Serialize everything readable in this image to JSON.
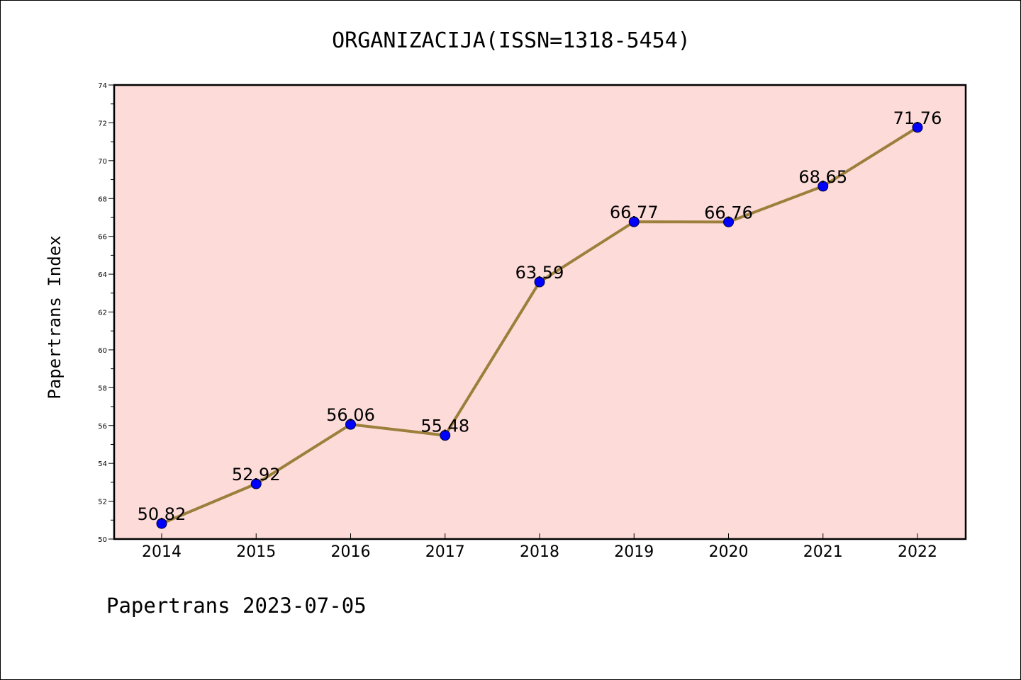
{
  "chart_data": {
    "type": "line",
    "title": "ORGANIZACIJA(ISSN=1318-5454)",
    "ylabel": "Papertrans Index",
    "xlabel": "",
    "categories": [
      "2014",
      "2015",
      "2016",
      "2017",
      "2018",
      "2019",
      "2020",
      "2021",
      "2022"
    ],
    "values": [
      50.82,
      52.92,
      56.06,
      55.48,
      63.59,
      66.77,
      66.76,
      68.65,
      71.76
    ],
    "data_labels": [
      "50.82",
      "52.92",
      "56.06",
      "55.48",
      "63.59",
      "66.77",
      "66.76",
      "68.65",
      "71.76"
    ],
    "ylim": [
      50,
      74
    ],
    "yticks": [
      "50",
      "52",
      "54",
      "56",
      "58",
      "60",
      "62",
      "64",
      "66",
      "68",
      "70",
      "72",
      "74"
    ],
    "grid": false,
    "line_color": "#9b7f3b",
    "marker_color": "#0000ff",
    "plot_background": "#fddbd9"
  },
  "footer": "Papertrans 2023-07-05"
}
